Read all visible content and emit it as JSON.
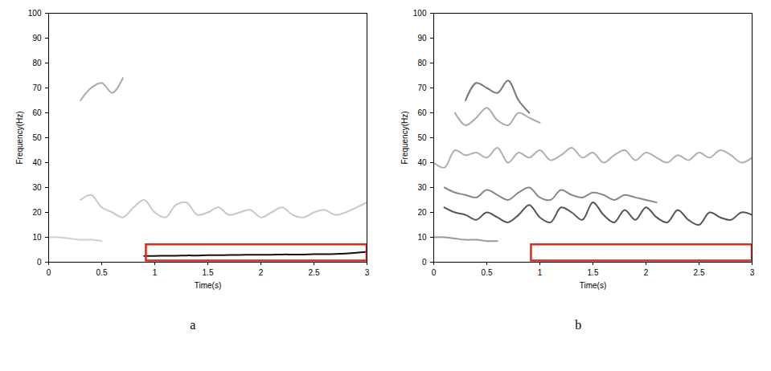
{
  "chart_data": [
    {
      "type": "line",
      "title": "a",
      "x_label": "Time(s)",
      "y_label": "Frequency(Hz)",
      "xlim": [
        0,
        3
      ],
      "ylim": [
        0,
        100
      ],
      "xticks": [
        0,
        0.5,
        1,
        1.5,
        2,
        2.5,
        3
      ],
      "yticks": [
        0,
        10,
        20,
        30,
        40,
        50,
        60,
        70,
        80,
        90,
        100
      ],
      "x": [
        0,
        0.1,
        0.2,
        0.3,
        0.4,
        0.5,
        0.6,
        0.7,
        0.8,
        0.9,
        1,
        1.1,
        1.2,
        1.3,
        1.4,
        1.5,
        1.6,
        1.7,
        1.8,
        1.9,
        2,
        2.1,
        2.2,
        2.3,
        2.4,
        2.5,
        2.6,
        2.7,
        2.8,
        2.9,
        3
      ],
      "series": [
        {
          "color": "#111111",
          "values": [
            null,
            null,
            null,
            null,
            null,
            null,
            null,
            null,
            null,
            2.5,
            2.5,
            2.6,
            2.6,
            2.7,
            2.7,
            2.8,
            2.8,
            2.9,
            2.9,
            3.0,
            3.0,
            3.0,
            3.1,
            3.1,
            3.1,
            3.2,
            3.2,
            3.3,
            3.5,
            3.8,
            4.2
          ]
        },
        {
          "color": "#c8c8c8",
          "values": [
            null,
            null,
            null,
            25,
            27,
            22,
            20,
            18,
            22,
            25,
            20,
            18,
            23,
            24,
            19,
            20,
            22,
            19,
            20,
            21,
            18,
            20,
            22,
            19,
            18,
            20,
            21,
            19,
            20,
            22,
            24
          ]
        },
        {
          "color": "#aaaaaa",
          "values": [
            null,
            null,
            null,
            65,
            70,
            72,
            68,
            74,
            null,
            null,
            null,
            null,
            null,
            null,
            null,
            null,
            null,
            null,
            null,
            null,
            null,
            null,
            null,
            null,
            null,
            null,
            null,
            null,
            null,
            null,
            null
          ]
        },
        {
          "color": "#d0d0d0",
          "values": [
            10,
            10,
            9.5,
            9,
            9,
            8.5,
            null,
            null,
            null,
            null,
            null,
            null,
            null,
            null,
            null,
            null,
            null,
            null,
            null,
            null,
            null,
            null,
            null,
            null,
            null,
            null,
            null,
            null,
            null,
            null,
            null
          ]
        }
      ],
      "annotations": [
        {
          "type": "rect",
          "x": [
            0.92,
            3
          ],
          "y": [
            0.5,
            7
          ],
          "color": "#e02818"
        }
      ]
    },
    {
      "type": "line",
      "title": "b",
      "x_label": "Time(s)",
      "y_label": "Frequency(Hz)",
      "xlim": [
        0,
        3
      ],
      "ylim": [
        0,
        100
      ],
      "xticks": [
        0,
        0.5,
        1,
        1.5,
        2,
        2.5,
        3
      ],
      "yticks": [
        0,
        10,
        20,
        30,
        40,
        50,
        60,
        70,
        80,
        90,
        100
      ],
      "x": [
        0,
        0.1,
        0.2,
        0.3,
        0.4,
        0.5,
        0.6,
        0.7,
        0.8,
        0.9,
        1,
        1.1,
        1.2,
        1.3,
        1.4,
        1.5,
        1.6,
        1.7,
        1.8,
        1.9,
        2,
        2.1,
        2.2,
        2.3,
        2.4,
        2.5,
        2.6,
        2.7,
        2.8,
        2.9,
        3
      ],
      "series": [
        {
          "color": "#555555",
          "values": [
            null,
            22,
            20,
            19,
            17,
            20,
            18,
            16,
            19,
            23,
            18,
            16,
            22,
            20,
            17,
            24,
            19,
            16,
            21,
            17,
            22,
            18,
            16,
            21,
            17,
            15,
            20,
            18,
            17,
            20,
            19
          ]
        },
        {
          "color": "#888888",
          "values": [
            null,
            30,
            28,
            27,
            26,
            29,
            27,
            25,
            28,
            30,
            26,
            25,
            29,
            27,
            26,
            28,
            27,
            25,
            27,
            26,
            25,
            24,
            null,
            null,
            null,
            null,
            null,
            null,
            null,
            null,
            null
          ]
        },
        {
          "color": "#b0b0b0",
          "values": [
            40,
            38,
            45,
            43,
            44,
            42,
            46,
            40,
            44,
            42,
            45,
            41,
            43,
            46,
            42,
            44,
            40,
            43,
            45,
            41,
            44,
            42,
            40,
            43,
            41,
            44,
            42,
            45,
            43,
            40,
            42
          ]
        },
        {
          "color": "#777777",
          "values": [
            null,
            null,
            null,
            65,
            72,
            70,
            68,
            73,
            65,
            60,
            null,
            null,
            null,
            null,
            null,
            null,
            null,
            null,
            null,
            null,
            null,
            null,
            null,
            null,
            null,
            null,
            null,
            null,
            null,
            null,
            null
          ]
        },
        {
          "color": "#999999",
          "values": [
            10,
            10,
            9.5,
            9,
            9,
            8.5,
            8.5,
            null,
            null,
            null,
            null,
            null,
            null,
            null,
            null,
            null,
            null,
            null,
            null,
            null,
            null,
            null,
            null,
            null,
            null,
            null,
            null,
            null,
            null,
            null,
            null
          ]
        },
        {
          "color": "#aaaaaa",
          "values": [
            null,
            null,
            60,
            55,
            58,
            62,
            57,
            55,
            60,
            58,
            56,
            null,
            null,
            null,
            null,
            null,
            null,
            null,
            null,
            null,
            null,
            null,
            null,
            null,
            null,
            null,
            null,
            null,
            null,
            null,
            null
          ]
        }
      ],
      "annotations": [
        {
          "type": "rect",
          "x": [
            0.92,
            3
          ],
          "y": [
            0.5,
            7
          ],
          "color": "#e02818"
        }
      ]
    }
  ]
}
